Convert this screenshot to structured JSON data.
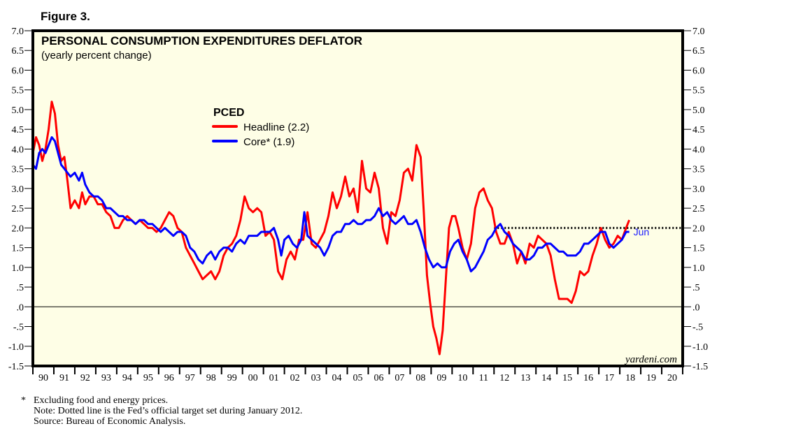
{
  "figure_label": "Figure 3.",
  "watermark": "yardeni.com",
  "notes": {
    "asterisk": "*",
    "lines": [
      "Excluding food and energy prices.",
      "Note: Dotted line is the Fed’s official target set during January 2012.",
      "Source: Bureau of Economic Analysis."
    ]
  },
  "chart_data": {
    "type": "line",
    "title": "PERSONAL CONSUMPTION EXPENDITURES DEFLATOR",
    "subtitle": "(yearly percent change)",
    "xlabel": "",
    "ylabel": "",
    "ylim": [
      -1.5,
      7.0
    ],
    "xlim": [
      1990,
      2021
    ],
    "y_ticks": [
      "7.0",
      "6.5",
      "6.0",
      "5.5",
      "5.0",
      "4.5",
      "4.0",
      "3.5",
      "3.0",
      "2.5",
      "2.0",
      "1.5",
      "1.0",
      ".5",
      ".0",
      "-.5",
      "-1.0",
      "-1.5"
    ],
    "y_tick_values": [
      7.0,
      6.5,
      6.0,
      5.5,
      5.0,
      4.5,
      4.0,
      3.5,
      3.0,
      2.5,
      2.0,
      1.5,
      1.0,
      0.5,
      0.0,
      -0.5,
      -1.0,
      -1.5
    ],
    "x_tick_labels": [
      "90",
      "91",
      "92",
      "93",
      "94",
      "95",
      "96",
      "97",
      "98",
      "99",
      "00",
      "01",
      "02",
      "03",
      "04",
      "05",
      "06",
      "07",
      "08",
      "09",
      "10",
      "11",
      "12",
      "13",
      "14",
      "15",
      "16",
      "17",
      "18",
      "19",
      "20"
    ],
    "legend": {
      "title": "PCED",
      "placement": "upper-center-left",
      "entries": [
        {
          "label": "Headline (2.2)",
          "color": "#ff0000"
        },
        {
          "label": "Core* (1.9)",
          "color": "#0000ff"
        }
      ]
    },
    "reference_line": {
      "label": "Fed target",
      "value": 2.0,
      "start": 2012.0,
      "end": 2021.0,
      "style": "dotted",
      "color": "#000000"
    },
    "zero_line": 0.0,
    "end_annotation": {
      "label": "Jun",
      "color": "#1a1aff"
    },
    "series": [
      {
        "name": "Headline",
        "color": "#ff0000",
        "x": [
          1990.0,
          1990.15,
          1990.3,
          1990.45,
          1990.6,
          1990.75,
          1990.9,
          1991.05,
          1991.2,
          1991.35,
          1991.5,
          1991.65,
          1991.8,
          1992.0,
          1992.2,
          1992.35,
          1992.5,
          1992.7,
          1992.9,
          1993.1,
          1993.3,
          1993.5,
          1993.7,
          1993.9,
          1994.1,
          1994.3,
          1994.5,
          1994.7,
          1994.9,
          1995.1,
          1995.3,
          1995.5,
          1995.7,
          1995.9,
          1996.1,
          1996.3,
          1996.5,
          1996.7,
          1996.9,
          1997.1,
          1997.3,
          1997.5,
          1997.7,
          1997.9,
          1998.1,
          1998.3,
          1998.5,
          1998.7,
          1998.9,
          1999.1,
          1999.3,
          1999.5,
          1999.7,
          1999.9,
          2000.1,
          2000.3,
          2000.5,
          2000.7,
          2000.9,
          2001.1,
          2001.3,
          2001.5,
          2001.7,
          2001.9,
          2002.1,
          2002.3,
          2002.5,
          2002.7,
          2002.9,
          2003.1,
          2003.3,
          2003.5,
          2003.7,
          2003.9,
          2004.1,
          2004.3,
          2004.5,
          2004.7,
          2004.9,
          2005.1,
          2005.3,
          2005.5,
          2005.7,
          2005.9,
          2006.1,
          2006.3,
          2006.5,
          2006.7,
          2006.9,
          2007.1,
          2007.3,
          2007.5,
          2007.7,
          2007.9,
          2008.1,
          2008.3,
          2008.5,
          2008.65,
          2008.8,
          2008.95,
          2009.1,
          2009.25,
          2009.4,
          2009.55,
          2009.7,
          2009.85,
          2010.0,
          2010.15,
          2010.3,
          2010.5,
          2010.7,
          2010.9,
          2011.1,
          2011.3,
          2011.5,
          2011.7,
          2011.9,
          2012.1,
          2012.3,
          2012.5,
          2012.7,
          2012.9,
          2013.1,
          2013.3,
          2013.5,
          2013.7,
          2013.9,
          2014.1,
          2014.3,
          2014.5,
          2014.7,
          2014.9,
          2015.1,
          2015.3,
          2015.5,
          2015.7,
          2015.9,
          2016.1,
          2016.3,
          2016.5,
          2016.7,
          2016.9,
          2017.1,
          2017.3,
          2017.5,
          2017.7,
          2017.9,
          2018.1,
          2018.3,
          2018.45
        ],
        "values": [
          3.9,
          4.3,
          4.1,
          3.7,
          4.0,
          4.5,
          5.2,
          4.9,
          4.1,
          3.7,
          3.8,
          3.2,
          2.5,
          2.7,
          2.5,
          2.9,
          2.6,
          2.8,
          2.8,
          2.6,
          2.6,
          2.4,
          2.3,
          2.0,
          2.0,
          2.2,
          2.3,
          2.2,
          2.1,
          2.2,
          2.1,
          2.0,
          2.0,
          1.9,
          2.0,
          2.2,
          2.4,
          2.3,
          2.0,
          1.9,
          1.5,
          1.3,
          1.1,
          0.9,
          0.7,
          0.8,
          0.9,
          0.7,
          0.9,
          1.3,
          1.5,
          1.6,
          1.8,
          2.2,
          2.8,
          2.5,
          2.4,
          2.5,
          2.4,
          1.8,
          1.9,
          1.7,
          0.9,
          0.7,
          1.2,
          1.4,
          1.2,
          1.7,
          1.7,
          2.4,
          1.6,
          1.5,
          1.7,
          1.9,
          2.3,
          2.9,
          2.5,
          2.8,
          3.3,
          2.8,
          3.0,
          2.4,
          3.7,
          3.0,
          2.9,
          3.4,
          3.0,
          2.0,
          1.6,
          2.4,
          2.3,
          2.7,
          3.4,
          3.5,
          3.2,
          4.1,
          3.8,
          2.4,
          0.8,
          0.1,
          -0.5,
          -0.8,
          -1.2,
          -0.6,
          0.7,
          2.0,
          2.3,
          2.3,
          2.0,
          1.5,
          1.2,
          1.6,
          2.5,
          2.9,
          3.0,
          2.7,
          2.5,
          1.9,
          1.6,
          1.6,
          1.9,
          1.6,
          1.1,
          1.4,
          1.1,
          1.6,
          1.5,
          1.8,
          1.7,
          1.6,
          1.3,
          0.7,
          0.2,
          0.2,
          0.2,
          0.1,
          0.4,
          0.9,
          0.8,
          0.9,
          1.3,
          1.6,
          2.0,
          1.7,
          1.5,
          1.6,
          1.8,
          1.7,
          2.0,
          2.2
        ]
      },
      {
        "name": "Core",
        "color": "#0000ff",
        "x": [
          1990.0,
          1990.15,
          1990.3,
          1990.45,
          1990.6,
          1990.75,
          1990.9,
          1991.05,
          1991.2,
          1991.35,
          1991.5,
          1991.65,
          1991.8,
          1992.0,
          1992.2,
          1992.35,
          1992.5,
          1992.7,
          1992.9,
          1993.1,
          1993.3,
          1993.5,
          1993.7,
          1993.9,
          1994.1,
          1994.3,
          1994.5,
          1994.7,
          1994.9,
          1995.1,
          1995.3,
          1995.5,
          1995.7,
          1995.9,
          1996.1,
          1996.3,
          1996.5,
          1996.7,
          1996.9,
          1997.1,
          1997.3,
          1997.5,
          1997.7,
          1997.9,
          1998.1,
          1998.3,
          1998.5,
          1998.7,
          1998.9,
          1999.1,
          1999.3,
          1999.5,
          1999.7,
          1999.9,
          2000.1,
          2000.3,
          2000.5,
          2000.7,
          2000.9,
          2001.1,
          2001.3,
          2001.5,
          2001.7,
          2001.85,
          2002.0,
          2002.2,
          2002.4,
          2002.6,
          2002.8,
          2002.95,
          2003.1,
          2003.3,
          2003.5,
          2003.7,
          2003.9,
          2004.1,
          2004.3,
          2004.5,
          2004.7,
          2004.9,
          2005.1,
          2005.3,
          2005.5,
          2005.7,
          2005.9,
          2006.1,
          2006.3,
          2006.5,
          2006.7,
          2006.9,
          2007.1,
          2007.3,
          2007.5,
          2007.7,
          2007.9,
          2008.1,
          2008.3,
          2008.5,
          2008.7,
          2008.9,
          2009.1,
          2009.3,
          2009.5,
          2009.7,
          2009.9,
          2010.1,
          2010.3,
          2010.5,
          2010.7,
          2010.9,
          2011.1,
          2011.3,
          2011.5,
          2011.7,
          2011.9,
          2012.1,
          2012.3,
          2012.5,
          2012.7,
          2012.9,
          2013.1,
          2013.3,
          2013.5,
          2013.7,
          2013.9,
          2014.1,
          2014.3,
          2014.5,
          2014.7,
          2014.9,
          2015.1,
          2015.3,
          2015.5,
          2015.7,
          2015.9,
          2016.1,
          2016.3,
          2016.5,
          2016.7,
          2016.9,
          2017.1,
          2017.3,
          2017.5,
          2017.7,
          2017.9,
          2018.1,
          2018.3,
          2018.45
        ],
        "values": [
          3.6,
          3.5,
          3.9,
          4.0,
          3.9,
          4.1,
          4.3,
          4.2,
          3.9,
          3.6,
          3.5,
          3.4,
          3.3,
          3.4,
          3.2,
          3.4,
          3.1,
          2.9,
          2.8,
          2.8,
          2.7,
          2.5,
          2.5,
          2.4,
          2.3,
          2.3,
          2.2,
          2.2,
          2.1,
          2.2,
          2.2,
          2.1,
          2.1,
          2.0,
          1.9,
          2.0,
          1.9,
          1.8,
          1.9,
          1.9,
          1.8,
          1.5,
          1.4,
          1.2,
          1.1,
          1.3,
          1.4,
          1.2,
          1.4,
          1.5,
          1.5,
          1.4,
          1.6,
          1.7,
          1.6,
          1.8,
          1.8,
          1.8,
          1.9,
          1.9,
          1.9,
          2.0,
          1.7,
          1.3,
          1.7,
          1.8,
          1.6,
          1.5,
          1.7,
          2.4,
          1.8,
          1.7,
          1.6,
          1.5,
          1.3,
          1.5,
          1.8,
          1.9,
          1.9,
          2.1,
          2.1,
          2.2,
          2.1,
          2.1,
          2.2,
          2.2,
          2.3,
          2.5,
          2.3,
          2.4,
          2.2,
          2.1,
          2.2,
          2.3,
          2.1,
          2.1,
          2.2,
          1.9,
          1.5,
          1.2,
          1.0,
          1.1,
          1.0,
          1.0,
          1.4,
          1.6,
          1.7,
          1.4,
          1.2,
          0.9,
          1.0,
          1.2,
          1.4,
          1.7,
          1.8,
          2.0,
          2.1,
          1.9,
          1.8,
          1.6,
          1.5,
          1.4,
          1.2,
          1.2,
          1.3,
          1.5,
          1.5,
          1.6,
          1.6,
          1.5,
          1.4,
          1.4,
          1.3,
          1.3,
          1.3,
          1.4,
          1.6,
          1.6,
          1.7,
          1.8,
          1.9,
          1.9,
          1.6,
          1.5,
          1.6,
          1.7,
          1.9,
          1.9
        ]
      }
    ]
  }
}
